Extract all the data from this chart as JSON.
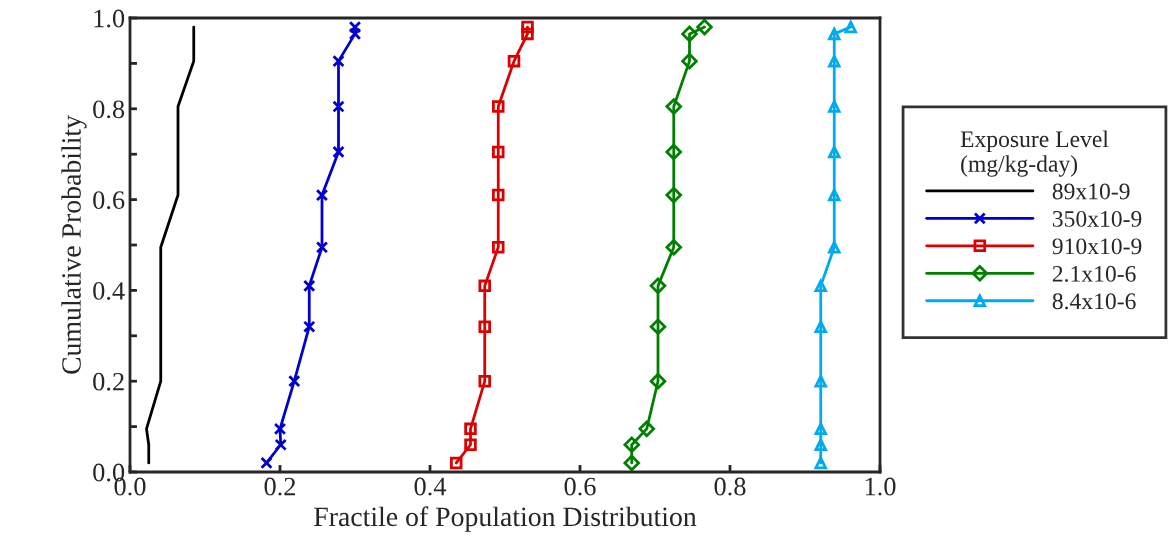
{
  "chart_data": {
    "type": "line",
    "xlabel": "Fractile of Population Distribution",
    "ylabel": "Cumulative Probability",
    "legend_title": "Exposure Level\n(mg/kg-day)",
    "legend": "right",
    "xlim": [
      0,
      1
    ],
    "ylim": [
      0,
      1
    ],
    "xticks": [
      {
        "value": 0,
        "label": "0.0"
      },
      {
        "value": 0.2,
        "label": "0.2"
      },
      {
        "value": 0.4,
        "label": "0.4"
      },
      {
        "value": 0.6,
        "label": "0.6"
      },
      {
        "value": 0.8,
        "label": "0.8"
      },
      {
        "value": 1,
        "label": "1.0"
      }
    ],
    "yticks": [
      {
        "value": 0,
        "label": "0.0"
      },
      {
        "value": 0.1,
        "label": null
      },
      {
        "value": 0.2,
        "label": "0.2"
      },
      {
        "value": 0.3,
        "label": null
      },
      {
        "value": 0.4,
        "label": "0.4"
      },
      {
        "value": 0.5,
        "label": null
      },
      {
        "value": 0.6,
        "label": "0.6"
      },
      {
        "value": 0.7,
        "label": null
      },
      {
        "value": 0.8,
        "label": "0.8"
      },
      {
        "value": 0.9,
        "label": null
      },
      {
        "value": 1,
        "label": "1.0"
      }
    ],
    "grid": false,
    "series": [
      {
        "name": "89x10-9",
        "color": "#000000",
        "marker": "none",
        "x": [
          0.025,
          0.025,
          0.022,
          0.041,
          0.041,
          0.041,
          0.041,
          0.064,
          0.064,
          0.064,
          0.085,
          0.085,
          0.085
        ],
        "values": [
          0.02,
          0.06,
          0.095,
          0.2,
          0.32,
          0.41,
          0.495,
          0.61,
          0.705,
          0.805,
          0.905,
          0.965,
          0.98
        ]
      },
      {
        "name": "350x10-9",
        "color": "#0000cc",
        "marker": "cross",
        "x": [
          0.182,
          0.201,
          0.2,
          0.219,
          0.239,
          0.239,
          0.256,
          0.256,
          0.278,
          0.278,
          0.278,
          0.3,
          0.3
        ],
        "values": [
          0.02,
          0.06,
          0.095,
          0.2,
          0.32,
          0.41,
          0.495,
          0.61,
          0.705,
          0.805,
          0.905,
          0.965,
          0.98
        ]
      },
      {
        "name": "910x10-9",
        "color": "#dd0000",
        "marker": "square",
        "x": [
          0.435,
          0.454,
          0.454,
          0.473,
          0.473,
          0.473,
          0.491,
          0.491,
          0.491,
          0.491,
          0.512,
          0.53,
          0.53
        ],
        "values": [
          0.02,
          0.06,
          0.095,
          0.2,
          0.32,
          0.41,
          0.495,
          0.61,
          0.705,
          0.805,
          0.905,
          0.965,
          0.98
        ]
      },
      {
        "name": "2.1x10-6",
        "color": "#008000",
        "marker": "diamond",
        "x": [
          0.669,
          0.669,
          0.689,
          0.704,
          0.704,
          0.704,
          0.725,
          0.725,
          0.725,
          0.725,
          0.746,
          0.746,
          0.766
        ],
        "values": [
          0.02,
          0.06,
          0.095,
          0.2,
          0.32,
          0.41,
          0.495,
          0.61,
          0.705,
          0.805,
          0.905,
          0.965,
          0.98
        ]
      },
      {
        "name": "8.4x10-6",
        "color": "#00aaee",
        "marker": "triangle",
        "x": [
          0.921,
          0.921,
          0.921,
          0.921,
          0.921,
          0.921,
          0.939,
          0.939,
          0.939,
          0.939,
          0.939,
          0.939,
          0.961
        ],
        "values": [
          0.02,
          0.06,
          0.095,
          0.2,
          0.32,
          0.41,
          0.495,
          0.61,
          0.705,
          0.805,
          0.905,
          0.965,
          0.98
        ]
      }
    ]
  }
}
